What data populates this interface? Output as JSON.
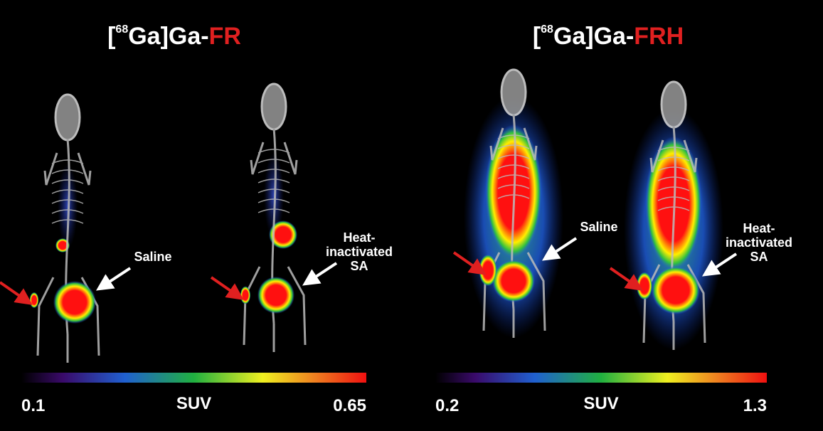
{
  "panels": [
    {
      "title": {
        "open": "[",
        "isotope": "68",
        "rest": "Ga]Ga-",
        "agent": "FR"
      },
      "labels": {
        "left": [
          "Saline"
        ],
        "right": [
          "Heat-",
          "inactivated",
          "SA"
        ]
      },
      "colorbar": {
        "min": 0.1,
        "label": "SUV",
        "max": 0.65
      }
    },
    {
      "title": {
        "open": "[",
        "isotope": "68",
        "rest": "Ga]Ga-",
        "agent": "FRH"
      },
      "labels": {
        "left": [
          "Saline"
        ],
        "right": [
          "Heat-",
          "inactivated",
          "SA"
        ]
      },
      "colorbar": {
        "min": 0.2,
        "label": "SUV",
        "max": 1.3
      }
    }
  ]
}
